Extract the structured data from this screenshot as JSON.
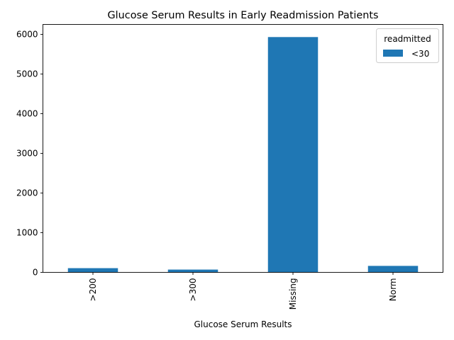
{
  "chart_data": {
    "type": "bar",
    "title": "Glucose Serum Results in Early Readmission Patients",
    "xlabel": "Glucose Serum Results",
    "ylabel": "",
    "categories": [
      ">200",
      ">300",
      "Missing",
      "Norm"
    ],
    "series": [
      {
        "name": "<30",
        "values": [
          106,
          70,
          5932,
          163
        ],
        "color": "#1f77b4"
      }
    ],
    "ylim": [
      0,
      6250
    ],
    "yticks": [
      0,
      1000,
      2000,
      3000,
      4000,
      5000,
      6000
    ],
    "legend": {
      "title": "readmitted",
      "placement": "top-right"
    },
    "grid": false
  }
}
